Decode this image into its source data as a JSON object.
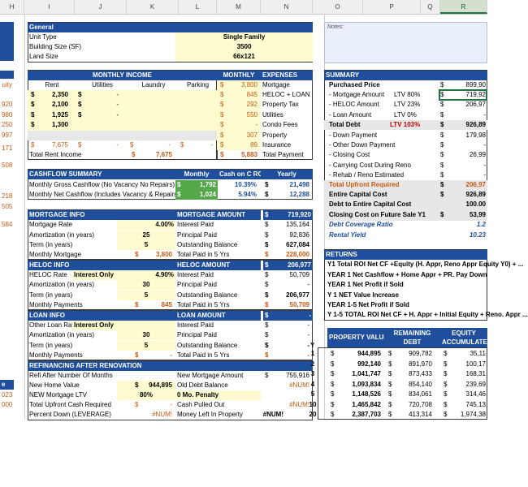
{
  "columns": [
    "H",
    "I",
    "J",
    "K",
    "L",
    "M",
    "N",
    "O",
    "P",
    "Q",
    "R"
  ],
  "general": {
    "title": "General",
    "unit_type_label": "Unit Type",
    "unit_type": "Single Family",
    "building_size_label": "Building Size (SF)",
    "building_size": "3500",
    "land_size_label": "Land Size",
    "land_size": "66x121"
  },
  "notes_label": "Notes:",
  "left_edge": {
    "uity": "uity",
    "v920": "920",
    "v980": "980",
    "v250": "250",
    "v997": "997",
    "v171": "171",
    "v508": "508",
    "v218": "218",
    "v505": "505",
    "v584": "584",
    "v_e": "e",
    "v023": "023",
    "v000": "000"
  },
  "income": {
    "title": "MONTHLY  INCOME",
    "headers": [
      "Rent",
      "Utilities",
      "Laundry",
      "Parking"
    ],
    "rows": [
      [
        "2,350",
        "-"
      ],
      [
        "2,100",
        "-"
      ],
      [
        "1,925",
        "-"
      ],
      [
        "1,300",
        ""
      ]
    ],
    "totals_row": [
      "7,675",
      "-",
      "-",
      "-"
    ],
    "total_label": "Total Rent Income",
    "total_value": "7,675"
  },
  "expenses": {
    "title_left": "MONTHLY",
    "title_right": "EXPENSES",
    "items": [
      {
        "value": "3,800",
        "label": "Mortgage"
      },
      {
        "value": "845",
        "label": "HELOC + LOAN"
      },
      {
        "value": "292",
        "label": "Property Tax"
      },
      {
        "value": "550",
        "label": "Utilities"
      },
      {
        "value": "-",
        "label": "Condo Fees"
      },
      {
        "value": "307",
        "label": "Property"
      },
      {
        "value": "89",
        "label": "Insurance"
      }
    ],
    "total_value": "5,883",
    "total_label": "Total Payment"
  },
  "summary": {
    "title": "SUMMARY",
    "rows": [
      {
        "label": "Purchased Price",
        "pct": "",
        "value": "899,90"
      },
      {
        "label": "- Mortgage Amount",
        "pct": "LTV 80%",
        "value": "719,92"
      },
      {
        "label": "- HELOC Amount",
        "pct": "LTV 23%",
        "value": "206,97"
      },
      {
        "label": "- Loan Amount",
        "pct": "LTV 0%",
        "value": "-"
      },
      {
        "label": "Total Debt",
        "pct": "LTV 103%",
        "value": "926,89"
      },
      {
        "label": "- Down Payment",
        "pct": "",
        "value": "179,98"
      },
      {
        "label": "- Other Down Payment",
        "pct": "",
        "value": "-"
      },
      {
        "label": "- Closing Cost",
        "pct": "",
        "value": "26,99"
      },
      {
        "label": "- Carrying Cost During Reno",
        "pct": "",
        "value": "-"
      },
      {
        "label": "- Rehab / Reno Estimated",
        "pct": "",
        "value": "-"
      },
      {
        "label": "Total Upfront Required",
        "pct": "",
        "value": "206,97"
      },
      {
        "label": "Entire Capital Cost",
        "pct": "",
        "value": "926,89"
      },
      {
        "label": "Debt to Entire Capital Cost",
        "pct": "",
        "value": "100.00"
      },
      {
        "label": "Closing Cost on Future Sale Y1",
        "pct": "",
        "value": "53,99"
      },
      {
        "label": "Debt Coverage Ratio",
        "pct": "",
        "value": "1.2"
      },
      {
        "label": "Rental Yield",
        "pct": "",
        "value": "10.23"
      }
    ]
  },
  "cashflow": {
    "title": "CASHFLOW SUMMARY",
    "h_monthly": "Monthly",
    "h_coc": "Cash on C ROI",
    "h_yearly": "Yearly",
    "gross_label": "Monthly Gross Cashflow (No Vacancy No Repairs)",
    "gross_monthly": "1,792",
    "gross_coc": "10.39%",
    "gross_yearly": "21,498",
    "net_label": "Monthly Net Cashflow (Includes Vacancy & Repairs)",
    "net_monthly": "1,024",
    "net_coc": "5.94%",
    "net_yearly": "12,288"
  },
  "mortgage": {
    "title": "MORTGAGE INFO",
    "rate_label": "Mortgage Rate",
    "rate": "4.00%",
    "amort_label": "Amortization (in years)",
    "amort": "25",
    "term_label": "Term (in years)",
    "term": "5",
    "monthly_label": "Monthly Mortgage",
    "monthly": "3,800",
    "amount_title": "MORTGAGE AMOUNT",
    "amount": "719,920",
    "interest_label": "Interest Paid",
    "interest": "135,164",
    "principal_label": "Principal Paid",
    "principal": "92,836",
    "balance_label": "Outstanding Balance",
    "balance": "627,084",
    "total5_label": "Total Paid in 5 Yrs",
    "total5": "228,000"
  },
  "heloc": {
    "title": "HELOC INFO",
    "rate_label": "HELOC Rate",
    "io_label": "Interest Only",
    "rate": "4.90%",
    "amort_label": "Amortization (in years)",
    "amort": "30",
    "term_label": "Term (in years)",
    "term": "5",
    "monthly_label": "Monthly Payments",
    "monthly": "845",
    "amount_title": "HELOC AMOUNT",
    "amount": "206,977",
    "interest_label": "Interest Paid",
    "interest": "50,709",
    "principal_label": "Principal Paid",
    "principal": "-",
    "balance_label": "Outstanding Balance",
    "balance": "206,977",
    "total5_label": "Total Paid in 5 Yrs",
    "total5": "50,709"
  },
  "loan": {
    "title": "LOAN INFO",
    "rate_label": "Other Loan Rate",
    "io_label": "Interest Only",
    "rate": "",
    "amort_label": "Amortization (in years)",
    "amort": "30",
    "term_label": "Term (in years)",
    "term": "5",
    "monthly_label": "Monthly Payments",
    "monthly": "-",
    "amount_title": "LOAN AMOUNT",
    "amount": "-",
    "interest_label": "Interest Paid",
    "interest": "-",
    "principal_label": "Principal Paid",
    "principal": "-",
    "balance_label": "Outstanding Balance",
    "balance": "-",
    "total5_label": "Total Paid in 5 Yrs",
    "total5": "-"
  },
  "refi": {
    "title": "REFINANCING AFTER RENOVATION",
    "after_label": "Refi After Number Of Months",
    "home_label": "New Home Value",
    "home": "944,895",
    "ltv_label": "NEW Mortgage LTV",
    "ltv": "80%",
    "upfront_label": "Total Upfront Cash Required",
    "upfront": "-",
    "down_label": "Percent Down (LEVERAGE)",
    "down": "#NUM!",
    "newmort_label": "New Mortgage Amount",
    "newmort": "755,916",
    "olddebt_label": "Old Debt Balance",
    "olddebt": "#NUM!",
    "penalty": "0 Mo. Penalty",
    "pulled_label": "Cash Pulled Out",
    "pulled": "#NUM!",
    "left_label": "Money Left In Property",
    "left": "#NUM!"
  },
  "returns": {
    "title": "RETURNS",
    "rows": [
      "Y1 Total ROI Net CF +Equity (H. Appr, Reno Appr Equity Y0) + ...",
      "YEAR 1 Net Cashflow + Home Appr + PR. Pay Down",
      "YEAR 1 Net Profit if Sold",
      "Y 1 NET Value Increase",
      "YEAR 1-5 Net Profit if Sold",
      "Y 1-5 TOTAL ROI Net CF + H. Appr + Initial Equity + Reno. Appr ..."
    ]
  },
  "projection": {
    "y_label": "Y",
    "headers": [
      "PROPERTY VALUE",
      "REMAINING DEBT",
      "EQUITY ACCUMULATED"
    ],
    "rows": [
      {
        "year": "1",
        "value": "944,895",
        "debt": "909,782",
        "equity": "35,11"
      },
      {
        "year": "2",
        "value": "992,140",
        "debt": "891,970",
        "equity": "100,17"
      },
      {
        "year": "3",
        "value": "1,041,747",
        "debt": "873,433",
        "equity": "168,31"
      },
      {
        "year": "4",
        "value": "1,093,834",
        "debt": "854,140",
        "equity": "239,69"
      },
      {
        "year": "5",
        "value": "1,148,526",
        "debt": "834,061",
        "equity": "314,46"
      },
      {
        "year": "10",
        "value": "1,465,842",
        "debt": "720,708",
        "equity": "745,13"
      },
      {
        "year": "20",
        "value": "2,387,703",
        "debt": "413,314",
        "equity": "1,974,38"
      }
    ]
  }
}
